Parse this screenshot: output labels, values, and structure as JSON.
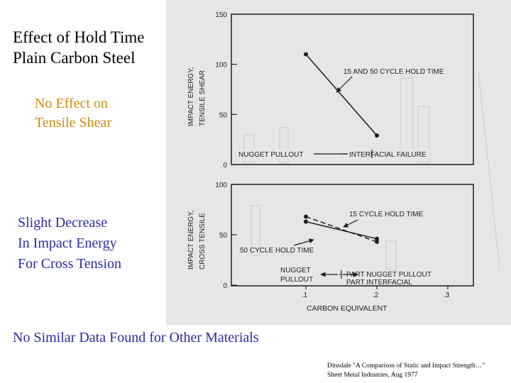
{
  "slide": {
    "title_line1": "Effect of Hold Time",
    "title_line2": "Plain Carbon Steel",
    "note_tensile_line1": "No Effect on",
    "note_tensile_line2": "Tensile Shear",
    "note_cross_line1": "Slight Decrease",
    "note_cross_line2": "In Impact Energy",
    "note_cross_line3": "For Cross Tension",
    "bottom_note": "No Similar Data Found for Other Materials",
    "citation_line1": "Dinsdale \"A Comparison of Static and Impact Strength…\"",
    "citation_line2": "Sheet Metal Industries, Aug 1977"
  },
  "chart_data": [
    {
      "type": "line",
      "ylabel_line1": "IMPACT ENERGY,",
      "ylabel_line2": "TENSILE SHEAR",
      "yticks": [
        "150",
        "100",
        "50",
        "0"
      ],
      "ylim": [
        0,
        150
      ],
      "xlim": [
        0.0,
        0.3
      ],
      "series": [
        {
          "name": "15 AND 50 CYCLE HOLD TIME",
          "x": [
            0.1,
            0.2
          ],
          "y": [
            110,
            29
          ]
        }
      ],
      "annotations": {
        "left_region": "NUGGET PULLOUT",
        "right_region": "INTERFACIAL FAILURE",
        "series_label": "15 AND 50 CYCLE HOLD TIME"
      }
    },
    {
      "type": "line",
      "ylabel_line1": "IMPACT ENERGY,",
      "ylabel_line2": "CROSS TENSILE",
      "yticks": [
        "100",
        "50",
        "0"
      ],
      "ylim": [
        0,
        100
      ],
      "xlim": [
        0.0,
        0.3
      ],
      "xlabel": "CARBON EQUIVALENT",
      "xticks": [
        ".1",
        ".2",
        ".3"
      ],
      "xtick_values": [
        0.1,
        0.2,
        0.3
      ],
      "series": [
        {
          "name": "15 CYCLE HOLD TIME",
          "x": [
            0.1,
            0.2
          ],
          "y": [
            68,
            43
          ]
        },
        {
          "name": "50 CYCLE HOLD TIME",
          "x": [
            0.1,
            0.2
          ],
          "y": [
            63,
            46
          ]
        }
      ],
      "annotations": {
        "left_region_line1": "NUGGET",
        "left_region_line2": "PULLOUT",
        "right_region_line1": "PART NUGGET PULLOUT",
        "right_region_line2": "PART INTERFACIAL",
        "label_15": "15 CYCLE HOLD TIME",
        "label_50": "50 CYCLE HOLD TIME"
      }
    }
  ]
}
